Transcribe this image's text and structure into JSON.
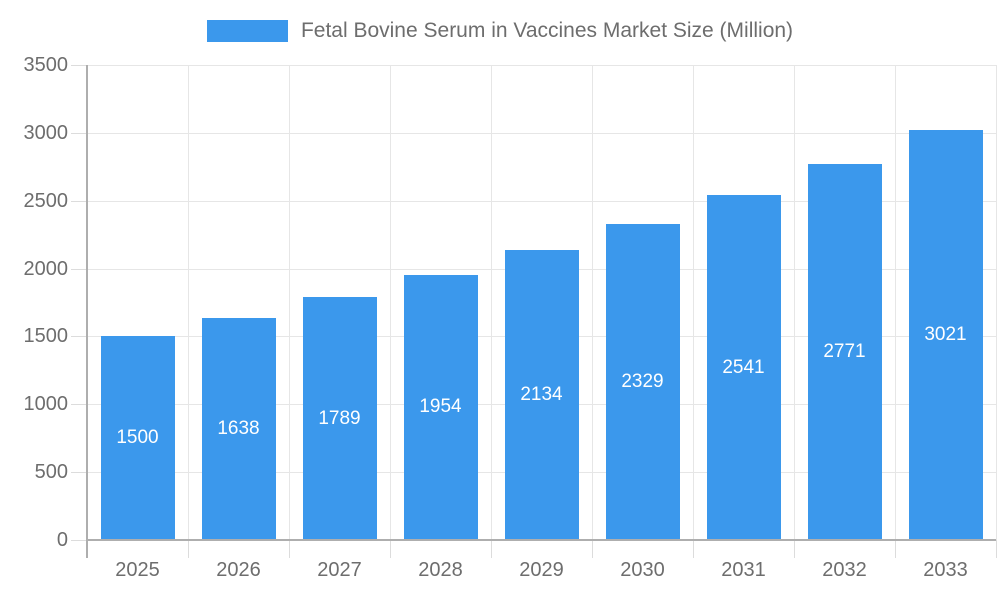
{
  "chart_data": {
    "type": "bar",
    "title": "Fetal Bovine Serum in Vaccines Market Size (Million)",
    "categories": [
      "2025",
      "2026",
      "2027",
      "2028",
      "2029",
      "2030",
      "2031",
      "2032",
      "2033"
    ],
    "values": [
      1500,
      1638,
      1789,
      1954,
      2134,
      2329,
      2541,
      2771,
      3021
    ],
    "xlabel": "",
    "ylabel": "",
    "ylim": [
      0,
      3500
    ],
    "yticks": [
      0,
      500,
      1000,
      1500,
      2000,
      2500,
      3000,
      3500
    ],
    "grid": true,
    "legend_position": "top",
    "bar_labels_inside": true
  },
  "colors": {
    "bar": "#3b98ec",
    "grid": "#e6e6e6",
    "tick": "#dcdcdc",
    "axis": "#aeaeae",
    "text": "#6d6d6d",
    "bar_label": "#ffffff",
    "background": "#ffffff"
  }
}
